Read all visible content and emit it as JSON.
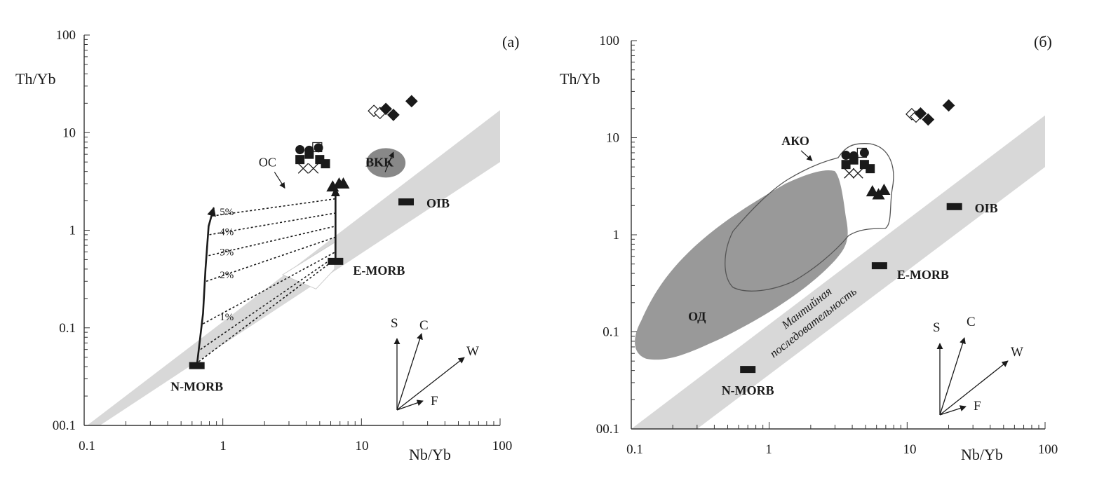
{
  "chart_data": [
    {
      "type": "scatter",
      "panel_label": "(a)",
      "xlabel": "Nb/Yb",
      "ylabel": "Th/Yb",
      "x_scale": "log",
      "y_scale": "log",
      "xlim": [
        0.1,
        100
      ],
      "ylim": [
        0.01,
        100
      ],
      "x_tick_labels": [
        "0.1",
        "1",
        "10",
        "100"
      ],
      "y_tick_labels": [
        "00.1",
        "0.1",
        "1",
        "10",
        "100"
      ],
      "mantle_array": {
        "lower": [
          [
            0.105,
            0.01
          ],
          [
            100,
            5
          ]
        ],
        "upper": [
          [
            0.13,
            0.01
          ],
          [
            100,
            17
          ]
        ]
      },
      "reference_points": [
        {
          "label": "N-MORB",
          "x": 0.65,
          "y": 0.041
        },
        {
          "label": "E-MORB",
          "x": 6.5,
          "y": 0.48
        },
        {
          "label": "OIB",
          "x": 21,
          "y": 1.95
        }
      ],
      "region_labels": [
        {
          "label": "BKK",
          "x": 13.5,
          "y": 4.5,
          "arrow_to": [
            17,
            6.3
          ]
        },
        {
          "label": "OC",
          "x": 2.1,
          "y": 4.5,
          "arrow_to": [
            2.8,
            2.7
          ]
        }
      ],
      "field_ellipse": {
        "x": 15,
        "y": 4.9
      },
      "mixing_percent_labels": [
        {
          "label": "1%",
          "x": 0.95,
          "y": 0.13
        },
        {
          "label": "2%",
          "x": 0.95,
          "y": 0.35
        },
        {
          "label": "3%",
          "x": 0.95,
          "y": 0.6
        },
        {
          "label": "4%",
          "x": 0.95,
          "y": 0.97
        },
        {
          "label": "5%",
          "x": 0.95,
          "y": 1.55
        }
      ],
      "mixing_curve": [
        [
          0.65,
          0.041
        ],
        [
          0.72,
          0.14
        ],
        [
          0.75,
          0.4
        ],
        [
          0.79,
          1.1
        ],
        [
          0.86,
          1.7
        ]
      ],
      "mixing_lines": [
        {
          "from": [
            0.72,
            0.11
          ],
          "to": [
            6.5,
            0.6
          ]
        },
        {
          "from": [
            0.76,
            0.3
          ],
          "to": [
            6.5,
            0.85
          ]
        },
        {
          "from": [
            0.79,
            0.55
          ],
          "to": [
            6.5,
            1.1
          ]
        },
        {
          "from": [
            0.8,
            0.9
          ],
          "to": [
            6.5,
            1.5
          ]
        },
        {
          "from": [
            0.84,
            1.4
          ],
          "to": [
            6.5,
            2.1
          ]
        },
        {
          "from": [
            0.67,
            0.045
          ],
          "to": [
            5.8,
            0.45
          ]
        },
        {
          "from": [
            0.69,
            0.06
          ],
          "to": [
            6.0,
            0.5
          ]
        }
      ],
      "vertical_arrow": {
        "x": 6.5,
        "from": 0.48,
        "to": 2.7
      },
      "samples": [
        {
          "marker": "diamond_open",
          "x": 12.3,
          "y": 16.7
        },
        {
          "marker": "diamond_open",
          "x": 13.6,
          "y": 15.9
        },
        {
          "marker": "diamond_filled",
          "x": 15,
          "y": 17.5
        },
        {
          "marker": "diamond_filled",
          "x": 17,
          "y": 15.2
        },
        {
          "marker": "diamond_filled",
          "x": 23,
          "y": 21
        },
        {
          "marker": "circle",
          "x": 3.6,
          "y": 6.7
        },
        {
          "marker": "circle",
          "x": 4.2,
          "y": 6.6
        },
        {
          "marker": "circle",
          "x": 4.9,
          "y": 7.0
        },
        {
          "marker": "square",
          "x": 3.6,
          "y": 5.3
        },
        {
          "marker": "square",
          "x": 4.2,
          "y": 6.0
        },
        {
          "marker": "square",
          "x": 5.0,
          "y": 5.3
        },
        {
          "marker": "square",
          "x": 5.5,
          "y": 4.8
        },
        {
          "marker": "square_open",
          "x": 4.8,
          "y": 7.1
        },
        {
          "marker": "cross",
          "x": 3.8,
          "y": 4.3
        },
        {
          "marker": "cross",
          "x": 4.5,
          "y": 4.3
        },
        {
          "marker": "triangle",
          "x": 6.2,
          "y": 2.8
        },
        {
          "marker": "triangle",
          "x": 6.9,
          "y": 3.0
        },
        {
          "marker": "triangle",
          "x": 7.4,
          "y": 3.0
        }
      ],
      "vector_labels": [
        "S",
        "C",
        "W",
        "F"
      ]
    },
    {
      "type": "scatter",
      "panel_label": "(б)",
      "xlabel": "Nb/Yb",
      "ylabel": "Th/Yb",
      "x_scale": "log",
      "y_scale": "log",
      "xlim": [
        0.1,
        100
      ],
      "ylim": [
        0.01,
        100
      ],
      "x_tick_labels": [
        "0.1",
        "1",
        "10",
        "100"
      ],
      "y_tick_labels": [
        "00.1",
        "0.1",
        "1",
        "10",
        "100"
      ],
      "mantle_array": {
        "lower": [
          [
            0.1,
            0.01
          ],
          [
            100,
            5
          ]
        ],
        "upper": [
          [
            0.3,
            0.01
          ],
          [
            100,
            17
          ]
        ]
      },
      "mantle_array_label": "Мантийная последовательность",
      "reference_points": [
        {
          "label": "N-MORB",
          "x": 0.7,
          "y": 0.041
        },
        {
          "label": "E-MORB",
          "x": 6.3,
          "y": 0.48
        },
        {
          "label": "OIB",
          "x": 22,
          "y": 1.95
        }
      ],
      "region_labels": [
        {
          "label": "АКО",
          "x": 1.55,
          "y": 8.4,
          "arrow_to": [
            2.05,
            5.8
          ]
        },
        {
          "label": "ОД",
          "x": 0.3,
          "y": 0.13
        }
      ],
      "samples": [
        {
          "marker": "diamond_open",
          "x": 10.8,
          "y": 17.5
        },
        {
          "marker": "diamond_open",
          "x": 11.6,
          "y": 16.5
        },
        {
          "marker": "diamond_filled",
          "x": 12.5,
          "y": 17.8
        },
        {
          "marker": "diamond_filled",
          "x": 14.2,
          "y": 15.4
        },
        {
          "marker": "diamond_filled",
          "x": 20,
          "y": 21.5
        },
        {
          "marker": "circle",
          "x": 3.6,
          "y": 6.6
        },
        {
          "marker": "circle",
          "x": 4.1,
          "y": 6.5
        },
        {
          "marker": "circle",
          "x": 4.9,
          "y": 7.0
        },
        {
          "marker": "square",
          "x": 3.6,
          "y": 5.3
        },
        {
          "marker": "square",
          "x": 4.1,
          "y": 5.9
        },
        {
          "marker": "square",
          "x": 4.9,
          "y": 5.3
        },
        {
          "marker": "square",
          "x": 5.4,
          "y": 4.8
        },
        {
          "marker": "square_open",
          "x": 4.7,
          "y": 7.0
        },
        {
          "marker": "cross",
          "x": 3.8,
          "y": 4.3
        },
        {
          "marker": "cross",
          "x": 4.4,
          "y": 4.3
        },
        {
          "marker": "triangle",
          "x": 5.6,
          "y": 2.8
        },
        {
          "marker": "triangle",
          "x": 6.2,
          "y": 2.6
        },
        {
          "marker": "triangle",
          "x": 6.8,
          "y": 2.9
        }
      ],
      "vector_labels": [
        "S",
        "C",
        "W",
        "F"
      ]
    }
  ]
}
